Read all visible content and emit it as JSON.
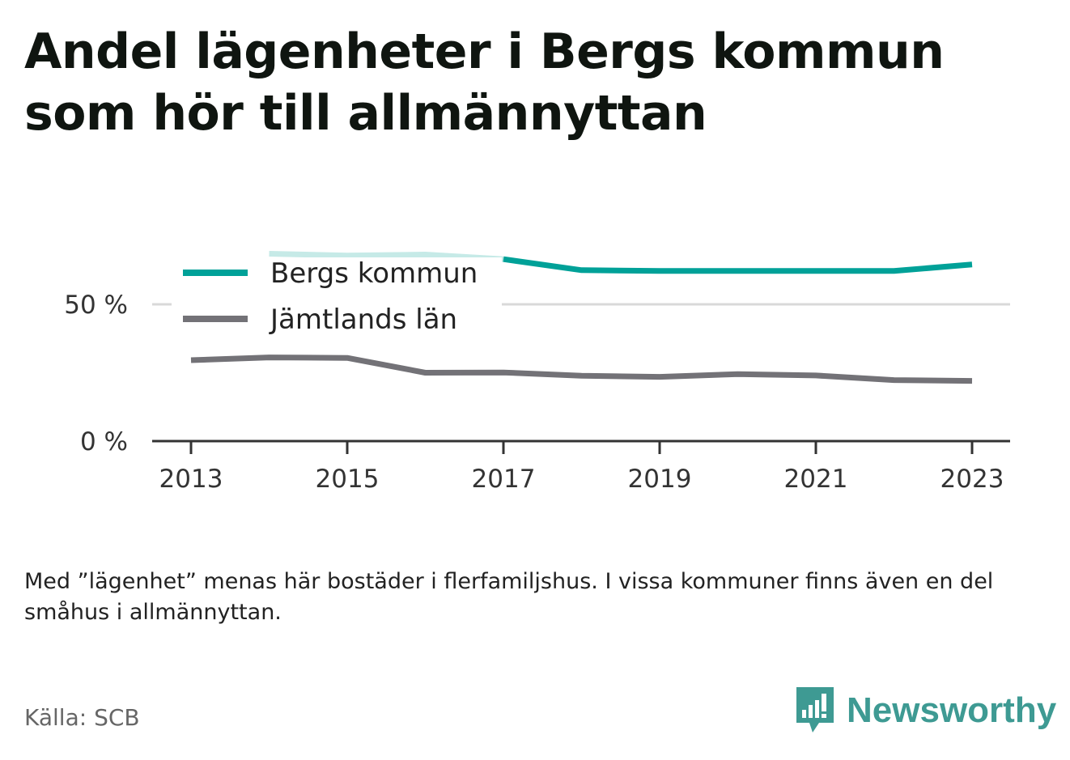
{
  "title": "Andel lägenheter i Bergs kommun som hör till allmännyttan",
  "note": "Med ”lägenhet” menas här bostäder i flerfamiljshus. I vissa kommuner finns även en del småhus i allmännyttan.",
  "source": "Källa: SCB",
  "brand": {
    "name": "Newsworthy",
    "icon": "newsworthy-logo-icon",
    "color": "#3e9a93"
  },
  "chart_data": {
    "type": "line",
    "x": [
      2013,
      2014,
      2015,
      2016,
      2017,
      2018,
      2019,
      2020,
      2021,
      2022,
      2023
    ],
    "x_ticks": [
      "2013",
      "2015",
      "2017",
      "2019",
      "2021",
      "2023"
    ],
    "y_ticks": [
      {
        "value": 0,
        "label": "0 %"
      },
      {
        "value": 50,
        "label": "50 %"
      }
    ],
    "ylim": [
      0,
      75
    ],
    "series": [
      {
        "name": "Bergs kommun",
        "color": "#00a198",
        "faded_color": "#c6eae7",
        "faded_until": 2017,
        "values": [
          null,
          68.5,
          67.8,
          68.2,
          66.5,
          62.5,
          62.2,
          62.2,
          62.2,
          62.2,
          64.6
        ]
      },
      {
        "name": "Jämtlands län",
        "color": "#737277",
        "values": [
          29.6,
          30.6,
          30.4,
          25.0,
          25.1,
          23.9,
          23.5,
          24.5,
          24.0,
          22.3,
          22.0
        ]
      }
    ],
    "legend": "top-left",
    "grid": true
  }
}
